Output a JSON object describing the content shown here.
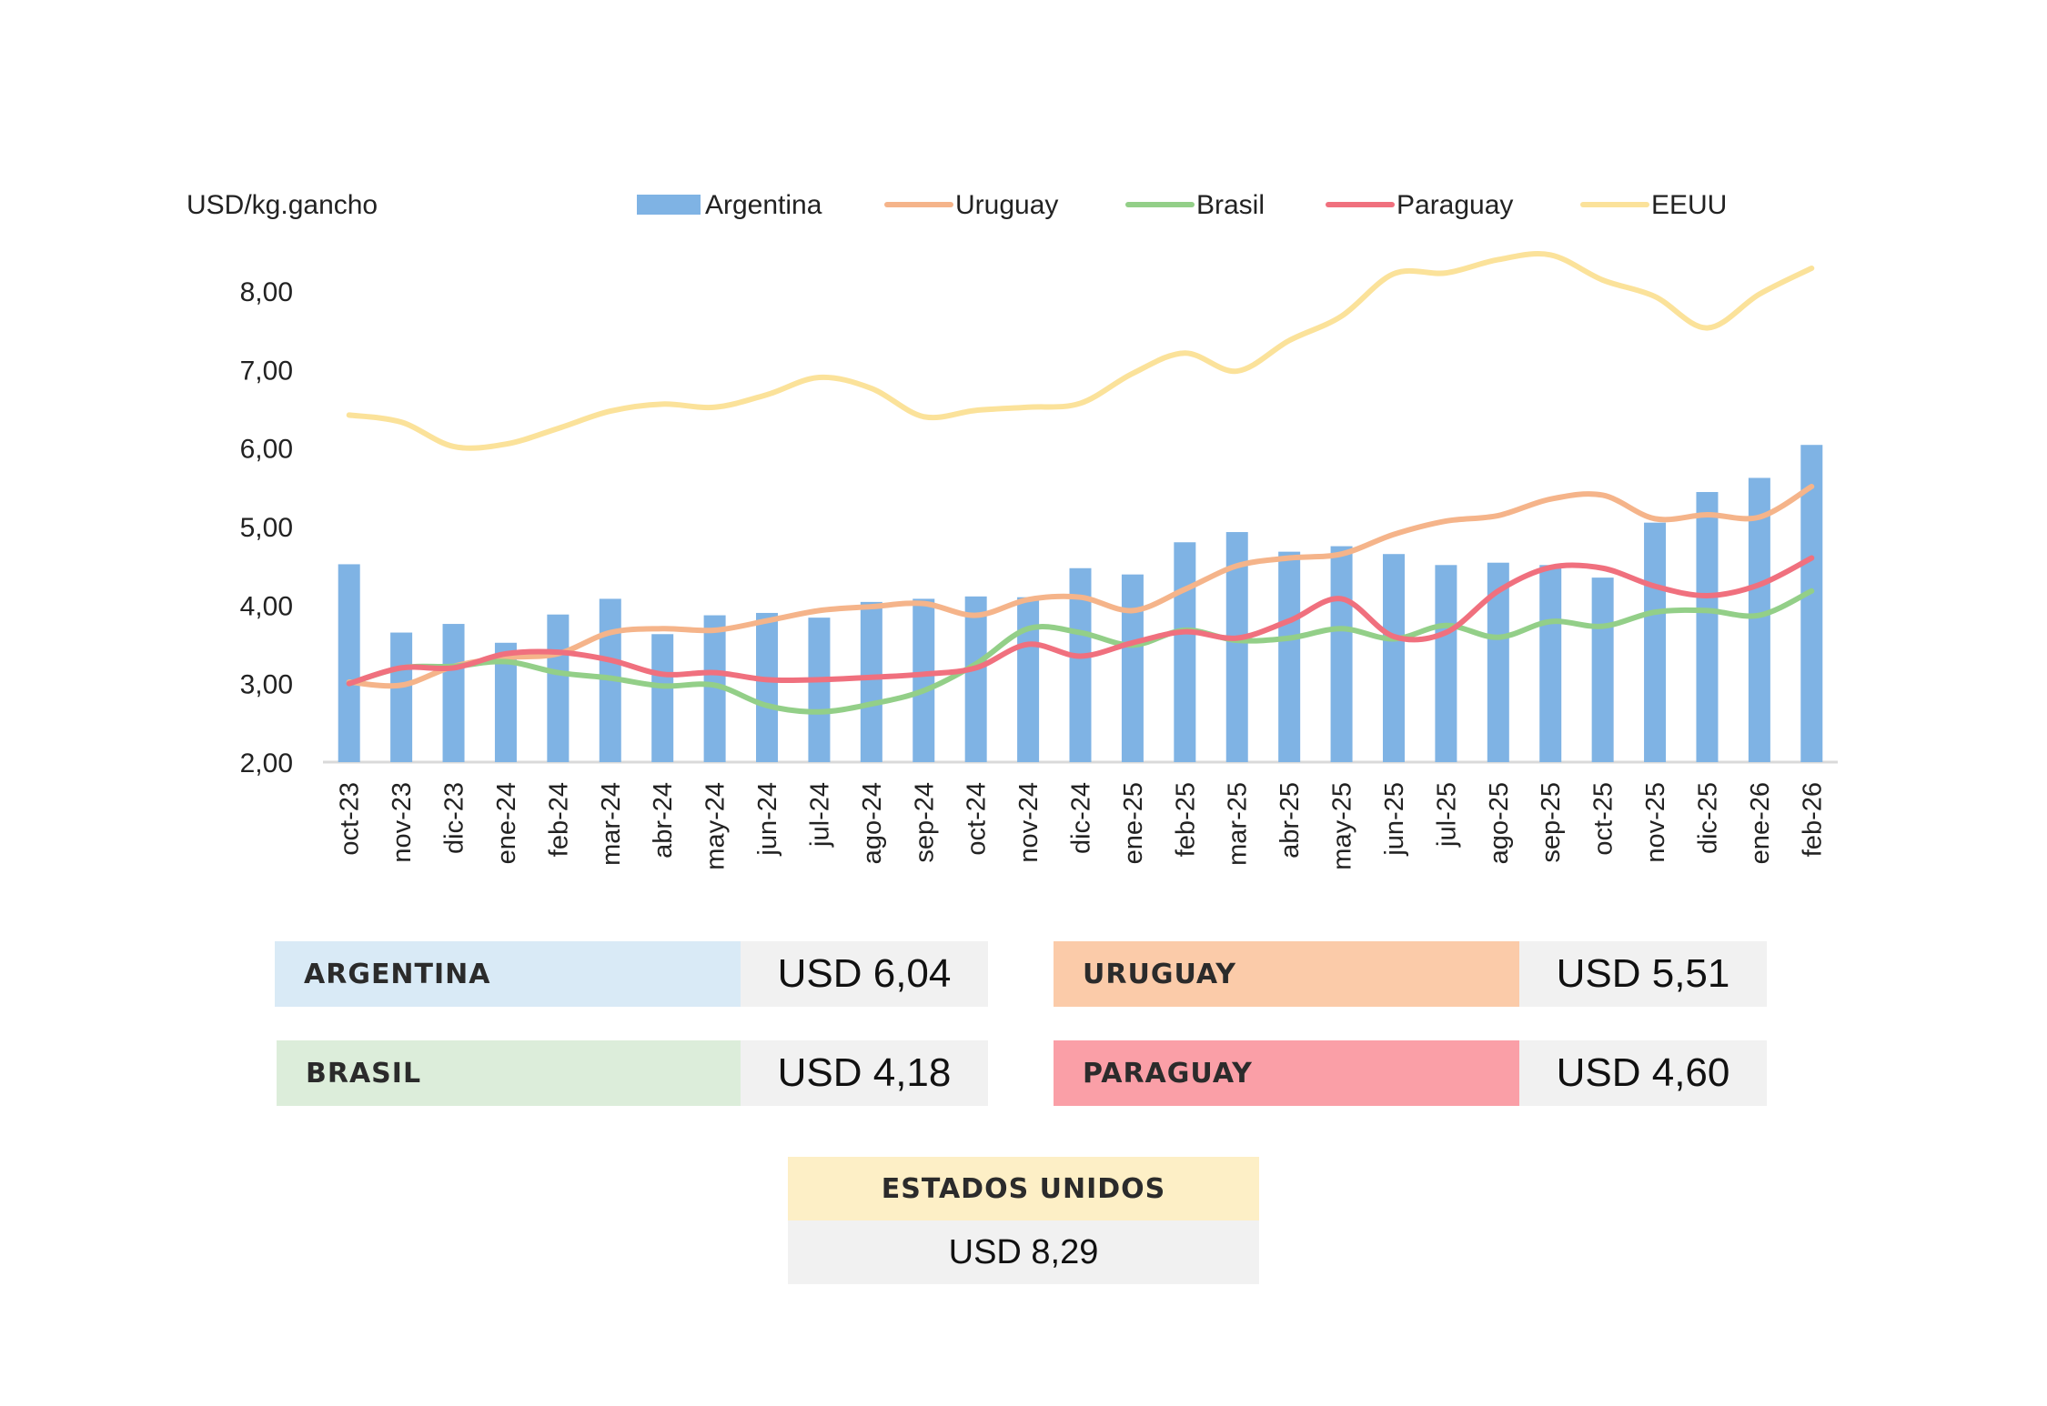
{
  "chart_data": {
    "type": "bar+line",
    "ylabel": "USD/kg.gancho",
    "ylim": [
      2,
      8.5
    ],
    "yticks": [
      "2,00",
      "3,00",
      "4,00",
      "5,00",
      "6,00",
      "7,00",
      "8,00"
    ],
    "categories": [
      "oct-23",
      "nov-23",
      "dic-23",
      "ene-24",
      "feb-24",
      "mar-24",
      "abr-24",
      "may-24",
      "jun-24",
      "jul-24",
      "ago-24",
      "sep-24",
      "oct-24",
      "nov-24",
      "dic-24",
      "ene-25",
      "feb-25",
      "mar-25",
      "abr-25",
      "may-25",
      "jun-25",
      "jul-25",
      "ago-25",
      "sep-25",
      "oct-25",
      "nov-25",
      "dic-25",
      "ene-26",
      "feb-26"
    ],
    "bars": {
      "name": "Argentina",
      "color": "#7fb3e4",
      "values": [
        4.52,
        3.65,
        3.76,
        3.52,
        3.88,
        4.08,
        3.63,
        3.87,
        3.9,
        3.84,
        4.04,
        4.08,
        4.11,
        4.1,
        4.47,
        4.39,
        4.8,
        4.93,
        4.68,
        4.75,
        4.65,
        4.51,
        4.54,
        4.51,
        4.35,
        5.05,
        5.44,
        5.62,
        6.04
      ]
    },
    "lines": [
      {
        "name": "Uruguay",
        "color": "#f5b48a",
        "values": [
          3.02,
          2.98,
          3.22,
          3.33,
          3.38,
          3.65,
          3.7,
          3.68,
          3.8,
          3.93,
          3.98,
          4.02,
          3.87,
          4.07,
          4.1,
          3.93,
          4.2,
          4.5,
          4.6,
          4.65,
          4.9,
          5.07,
          5.14,
          5.35,
          5.4,
          5.1,
          5.15,
          5.12,
          5.51
        ]
      },
      {
        "name": "Brasil",
        "color": "#93cf88",
        "values": [
          3.0,
          3.2,
          3.22,
          3.28,
          3.14,
          3.07,
          2.97,
          2.98,
          2.72,
          2.64,
          2.74,
          2.91,
          3.25,
          3.7,
          3.65,
          3.49,
          3.68,
          3.55,
          3.58,
          3.7,
          3.57,
          3.74,
          3.59,
          3.79,
          3.73,
          3.91,
          3.93,
          3.87,
          4.18
        ]
      },
      {
        "name": "Paraguay",
        "color": "#f0707e",
        "values": [
          3.0,
          3.2,
          3.2,
          3.38,
          3.4,
          3.3,
          3.12,
          3.14,
          3.05,
          3.05,
          3.08,
          3.12,
          3.2,
          3.5,
          3.35,
          3.52,
          3.66,
          3.58,
          3.8,
          4.08,
          3.6,
          3.65,
          4.18,
          4.48,
          4.47,
          4.24,
          4.12,
          4.26,
          4.6
        ]
      },
      {
        "name": "EEUU",
        "color": "#fbe29a",
        "values": [
          6.42,
          6.33,
          6.02,
          6.05,
          6.25,
          6.47,
          6.56,
          6.52,
          6.68,
          6.9,
          6.76,
          6.4,
          6.48,
          6.52,
          6.57,
          6.95,
          7.21,
          6.98,
          7.37,
          7.68,
          8.22,
          8.23,
          8.4,
          8.46,
          8.14,
          7.93,
          7.53,
          7.96,
          8.29
        ]
      }
    ],
    "legend_position": "top"
  },
  "summary": {
    "argentina": {
      "label": "ARGENTINA",
      "value": "USD 6,04",
      "color": "#d9eaf6"
    },
    "uruguay": {
      "label": "URUGUAY",
      "value": "USD 5,51",
      "color": "#fbcba9"
    },
    "brasil": {
      "label": "BRASIL",
      "value": "USD 4,18",
      "color": "#dcedda"
    },
    "paraguay": {
      "label": "PARAGUAY",
      "value": "USD 4,60",
      "color": "#fa9fa7"
    },
    "eeuu": {
      "label": "ESTADOS UNIDOS",
      "value": "USD 8,29",
      "color": "#fdefc6"
    }
  }
}
